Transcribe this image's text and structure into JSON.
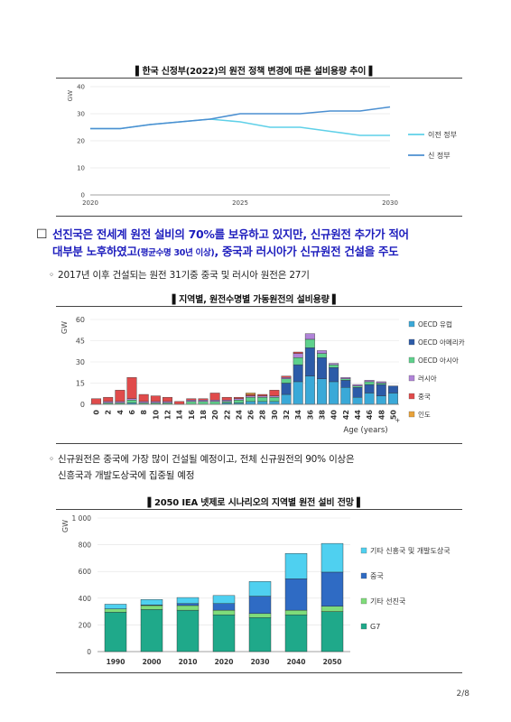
{
  "chart1": {
    "title": "▌한국 신정부(2022)의 원전 정책 변경에 따른 설비용량 추이 ▌",
    "chart_data": {
      "type": "line",
      "title": "한국 신정부(2022)의 원전 정책 변경에 따른 설비용량 추이",
      "ylabel": "GW",
      "xlim": [
        2020,
        2030
      ],
      "ylim": [
        0,
        40
      ],
      "x_ticks": [
        "2020",
        "2025",
        "2030"
      ],
      "y_ticks": [
        "0",
        "10",
        "20",
        "30",
        "40"
      ],
      "x": [
        2020,
        2021,
        2022,
        2023,
        2024,
        2025,
        2026,
        2027,
        2028,
        2029,
        2030
      ],
      "series": [
        {
          "name": "이전 정부",
          "color": "#5fd0e8",
          "values": [
            24.5,
            24.5,
            26,
            27,
            28,
            27,
            25,
            25,
            23.5,
            22,
            22
          ]
        },
        {
          "name": "신 정부",
          "color": "#4b8fd1",
          "values": [
            24.5,
            24.5,
            26,
            27,
            28,
            30,
            30,
            30,
            31,
            31,
            32.5
          ]
        }
      ],
      "legend_position": "right"
    }
  },
  "para1": {
    "line1": "선진국은 전세계 원전 설비의 70%를 보유하고 있지만, 신규원전 추가가 적어",
    "line2a": "대부분 노후하였고",
    "line2b": "(평균수명 30년 이상)",
    "line2c": ", 중국과 러시아가 신규원전 건설을 주도",
    "box": "☐"
  },
  "sub1": {
    "dot": "◦",
    "text": "2017년 이후 건설되는 원전 31기중 중국 및 러시아 원전은 27기"
  },
  "chart2": {
    "title": "▌지역별, 원전수명별 가동원전의 설비용량 ▌",
    "chart_data": {
      "type": "bar",
      "stacked": true,
      "ylabel": "GW",
      "xlabel": "Age (years)",
      "ylim": [
        0,
        60
      ],
      "y_ticks": [
        "0",
        "15",
        "30",
        "45",
        "60"
      ],
      "categories": [
        "0",
        "2",
        "4",
        "6",
        "8",
        "10",
        "12",
        "14",
        "16",
        "18",
        "20",
        "22",
        "24",
        "26",
        "28",
        "30",
        "32",
        "34",
        "36",
        "38",
        "40",
        "42",
        "44",
        "46",
        "48",
        "50"
      ],
      "last_category_suffix": "+",
      "series": [
        {
          "name": "OECD 유럽",
          "color": "#3aa9d8",
          "values": [
            0,
            0,
            0,
            1,
            0,
            0,
            0,
            0,
            0,
            0,
            0,
            1,
            1,
            2,
            2,
            2,
            7,
            16,
            20,
            18,
            16,
            12,
            5,
            8,
            6,
            8
          ]
        },
        {
          "name": "OECD 아메리카",
          "color": "#2c5ba8",
          "values": [
            0,
            0,
            0,
            0,
            0,
            0,
            0,
            0,
            0,
            0,
            0,
            0,
            0,
            0,
            0,
            0,
            8,
            12,
            20,
            15,
            10,
            5,
            7,
            6,
            8,
            5
          ]
        },
        {
          "name": "OECD 아시아",
          "color": "#5ed18c",
          "values": [
            0,
            1,
            1,
            2,
            1,
            1,
            1,
            0,
            2,
            2,
            2,
            1,
            2,
            3,
            3,
            3,
            3,
            5,
            6,
            3,
            2,
            1,
            1,
            2,
            1,
            0
          ]
        },
        {
          "name": "러시아",
          "color": "#b084d8",
          "values": [
            0,
            1,
            1,
            1,
            1,
            1,
            1,
            0,
            1,
            1,
            1,
            1,
            1,
            1,
            1,
            1,
            1,
            3,
            4,
            2,
            1,
            1,
            1,
            1,
            1,
            0
          ]
        },
        {
          "name": "중국",
          "color": "#e04b4b",
          "values": [
            4,
            3,
            8,
            15,
            5,
            4,
            3,
            2,
            1,
            1,
            5,
            2,
            1,
            1,
            1,
            4,
            1,
            1,
            0,
            0,
            0,
            0,
            0,
            0,
            0,
            0
          ]
        },
        {
          "name": "인도",
          "color": "#e8a23a",
          "values": [
            0,
            0,
            0,
            0,
            0,
            0,
            0,
            0,
            0,
            0,
            0,
            0,
            0,
            1,
            0,
            0,
            0,
            0,
            0,
            0,
            0,
            0,
            0,
            0,
            0,
            0
          ]
        }
      ],
      "legend_position": "right"
    }
  },
  "sub2": {
    "dot": "◦",
    "line1": "신규원전은 중국에 가장 많이 건설될 예정이고, 전체 신규원전의 90% 이상은",
    "line2": "신흥국과 개발도상국에 집중될 예정"
  },
  "chart3": {
    "title": "▌2050 IEA 넷제로 시나리오의 지역별 원전 설비 전망 ▌",
    "chart_data": {
      "type": "bar",
      "stacked": true,
      "ylabel": "GW",
      "ylim": [
        0,
        1000
      ],
      "y_ticks": [
        "0",
        "200",
        "400",
        "600",
        "800",
        "1 000"
      ],
      "categories": [
        "1990",
        "2000",
        "2010",
        "2020",
        "2030",
        "2040",
        "2050"
      ],
      "series": [
        {
          "name": "G7",
          "color": "#1fa98a",
          "values": [
            295,
            315,
            310,
            275,
            255,
            275,
            300
          ]
        },
        {
          "name": "기타 선진국",
          "color": "#7fdc7a",
          "values": [
            25,
            30,
            35,
            35,
            30,
            35,
            40
          ]
        },
        {
          "name": "중국",
          "color": "#2f6bc4",
          "values": [
            0,
            5,
            15,
            50,
            130,
            235,
            255
          ]
        },
        {
          "name": "기타 신흥국 및 개발도상국",
          "color": "#4fd0f0",
          "values": [
            35,
            40,
            45,
            60,
            110,
            190,
            215
          ]
        }
      ],
      "legend_position": "right"
    }
  },
  "page": {
    "number": "2/8"
  }
}
